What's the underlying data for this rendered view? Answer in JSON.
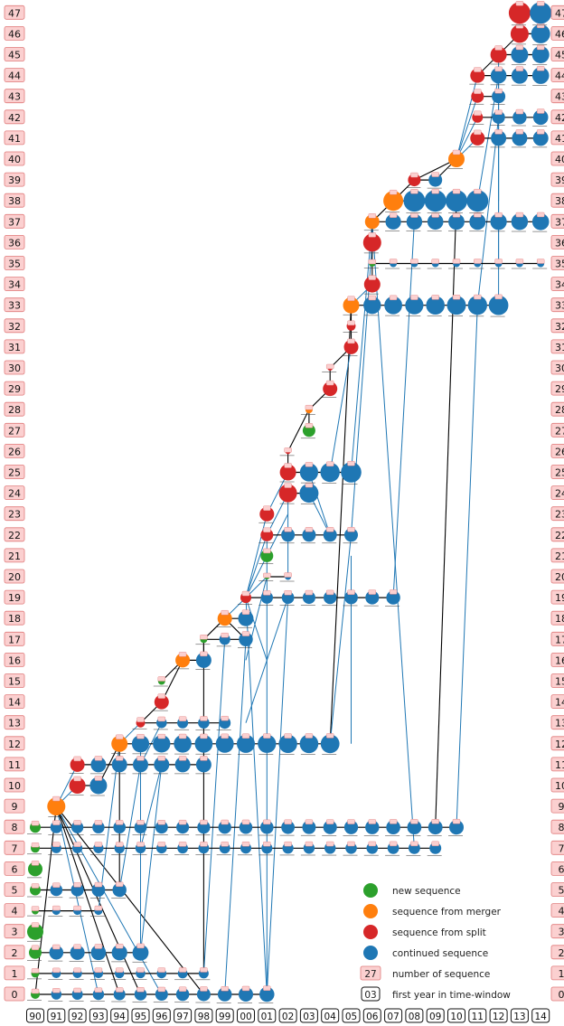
{
  "colors": {
    "new": "#2ca02c",
    "merger": "#ff7f0e",
    "split": "#d62728",
    "continued": "#1f77b4",
    "label_fill": "#fbd0d0",
    "label_stroke": "#e07a7a",
    "edge_blue": "#1f77b4",
    "edge_black": "#000000"
  },
  "rows": [
    "0",
    "1",
    "2",
    "3",
    "4",
    "5",
    "6",
    "7",
    "8",
    "9",
    "10",
    "11",
    "12",
    "13",
    "14",
    "15",
    "16",
    "17",
    "18",
    "19",
    "20",
    "21",
    "22",
    "23",
    "24",
    "25",
    "26",
    "27",
    "28",
    "29",
    "30",
    "31",
    "32",
    "33",
    "34",
    "35",
    "36",
    "37",
    "38",
    "39",
    "40",
    "41",
    "42",
    "43",
    "44",
    "45",
    "46",
    "47"
  ],
  "years": [
    "90",
    "91",
    "92",
    "93",
    "94",
    "95",
    "96",
    "97",
    "98",
    "99",
    "00",
    "01",
    "02",
    "03",
    "04",
    "05",
    "06",
    "07",
    "08",
    "09",
    "10",
    "11",
    "12",
    "13",
    "14"
  ],
  "legend": [
    {
      "type": "new",
      "label": "new sequence"
    },
    {
      "type": "merger",
      "label": "sequence from merger"
    },
    {
      "type": "split",
      "label": "sequence from split"
    },
    {
      "type": "continued",
      "label": "continued sequence"
    },
    {
      "type": "number",
      "sample": "27",
      "label": "number of sequence"
    },
    {
      "type": "year",
      "sample": "03",
      "label": "first year in time-window"
    }
  ],
  "sequences": [
    {
      "row": 0,
      "start": 0,
      "end": 11,
      "kind": "new",
      "size": 5,
      "grow": 0.55
    },
    {
      "row": 1,
      "start": 0,
      "end": 8,
      "kind": "new",
      "size": 4.5,
      "grow": 0.1
    },
    {
      "row": 2,
      "start": 0,
      "end": 5,
      "kind": "new",
      "size": 7,
      "grow": 0.2
    },
    {
      "row": 3,
      "start": 0,
      "end": 0,
      "kind": "new",
      "size": 9,
      "grow": 0
    },
    {
      "row": 4,
      "start": 0,
      "end": 3,
      "kind": "new",
      "size": 4,
      "grow": 0
    },
    {
      "row": 5,
      "start": 0,
      "end": 4,
      "kind": "new",
      "size": 6,
      "grow": 0.2
    },
    {
      "row": 6,
      "start": 0,
      "end": 0,
      "kind": "new",
      "size": 8,
      "grow": 0
    },
    {
      "row": 7,
      "start": 0,
      "end": 19,
      "kind": "new",
      "size": 5,
      "grow": 0.2
    },
    {
      "row": 8,
      "start": 0,
      "end": 20,
      "kind": "new",
      "size": 6,
      "grow": 0.25
    },
    {
      "row": 9,
      "start": 1,
      "end": 1,
      "kind": "merger",
      "size": 10,
      "grow": 0
    },
    {
      "row": 10,
      "start": 2,
      "end": 3,
      "kind": "split",
      "size": 9,
      "grow": 0
    },
    {
      "row": 11,
      "start": 2,
      "end": 8,
      "kind": "split",
      "size": 8,
      "grow": 0
    },
    {
      "row": 12,
      "start": 4,
      "end": 14,
      "kind": "merger",
      "size": 9,
      "grow": 0.1
    },
    {
      "row": 13,
      "start": 5,
      "end": 9,
      "kind": "split",
      "size": 5,
      "grow": 0.2
    },
    {
      "row": 14,
      "start": 6,
      "end": 6,
      "kind": "split",
      "size": 8,
      "grow": 0
    },
    {
      "row": 15,
      "start": 6,
      "end": 6,
      "kind": "new",
      "size": 4,
      "grow": 0
    },
    {
      "row": 16,
      "start": 7,
      "end": 8,
      "kind": "merger",
      "size": 8,
      "grow": 0
    },
    {
      "row": 17,
      "start": 8,
      "end": 10,
      "kind": "new",
      "size": 4,
      "grow": 0.8
    },
    {
      "row": 18,
      "start": 9,
      "end": 10,
      "kind": "merger",
      "size": 8,
      "grow": 0
    },
    {
      "row": 19,
      "start": 10,
      "end": 17,
      "kind": "split",
      "size": 6,
      "grow": 0.2
    },
    {
      "row": 20,
      "start": 11,
      "end": 12,
      "kind": "new",
      "size": 3,
      "grow": 0
    },
    {
      "row": 21,
      "start": 11,
      "end": 11,
      "kind": "new",
      "size": 7,
      "grow": 0
    },
    {
      "row": 22,
      "start": 11,
      "end": 15,
      "kind": "split",
      "size": 7,
      "grow": 0
    },
    {
      "row": 23,
      "start": 11,
      "end": 11,
      "kind": "split",
      "size": 8,
      "grow": 0
    },
    {
      "row": 24,
      "start": 12,
      "end": 13,
      "kind": "split",
      "size": 10,
      "grow": 0
    },
    {
      "row": 25,
      "start": 12,
      "end": 15,
      "kind": "split",
      "size": 9,
      "grow": 0.2
    },
    {
      "row": 26,
      "start": 12,
      "end": 12,
      "kind": "split",
      "size": 3,
      "grow": 0
    },
    {
      "row": 27,
      "start": 13,
      "end": 13,
      "kind": "new",
      "size": 7,
      "grow": 0
    },
    {
      "row": 28,
      "start": 13,
      "end": 13,
      "kind": "merger",
      "size": 4,
      "grow": 0
    },
    {
      "row": 29,
      "start": 14,
      "end": 14,
      "kind": "split",
      "size": 8,
      "grow": 0
    },
    {
      "row": 30,
      "start": 14,
      "end": 14,
      "kind": "split",
      "size": 3,
      "grow": 0
    },
    {
      "row": 31,
      "start": 15,
      "end": 15,
      "kind": "split",
      "size": 8,
      "grow": 0
    },
    {
      "row": 32,
      "start": 15,
      "end": 15,
      "kind": "split",
      "size": 5,
      "grow": 0
    },
    {
      "row": 33,
      "start": 15,
      "end": 22,
      "kind": "merger",
      "size": 9,
      "grow": 0.15
    },
    {
      "row": 34,
      "start": 16,
      "end": 16,
      "kind": "split",
      "size": 9,
      "grow": 0
    },
    {
      "row": 35,
      "start": 16,
      "end": 24,
      "kind": "new",
      "size": 3.5,
      "grow": 0
    },
    {
      "row": 36,
      "start": 16,
      "end": 16,
      "kind": "split",
      "size": 10,
      "grow": 0
    },
    {
      "row": 37,
      "start": 16,
      "end": 24,
      "kind": "merger",
      "size": 8,
      "grow": 0.1
    },
    {
      "row": 38,
      "start": 17,
      "end": 21,
      "kind": "merger",
      "size": 11,
      "grow": 0.15
    },
    {
      "row": 39,
      "start": 18,
      "end": 19,
      "kind": "split",
      "size": 7,
      "grow": 0
    },
    {
      "row": 40,
      "start": 20,
      "end": 20,
      "kind": "merger",
      "size": 9,
      "grow": 0
    },
    {
      "row": 41,
      "start": 21,
      "end": 24,
      "kind": "split",
      "size": 8,
      "grow": 0
    },
    {
      "row": 42,
      "start": 21,
      "end": 24,
      "kind": "split",
      "size": 6,
      "grow": 0.3
    },
    {
      "row": 43,
      "start": 21,
      "end": 22,
      "kind": "split",
      "size": 7,
      "grow": 0
    },
    {
      "row": 44,
      "start": 21,
      "end": 24,
      "kind": "split",
      "size": 8,
      "grow": 0.1
    },
    {
      "row": 45,
      "start": 22,
      "end": 24,
      "kind": "split",
      "size": 9,
      "grow": 0
    },
    {
      "row": 46,
      "start": 23,
      "end": 24,
      "kind": "split",
      "size": 10,
      "grow": 0
    },
    {
      "row": 47,
      "start": 23,
      "end": 24,
      "kind": "split",
      "size": 12,
      "grow": 0
    }
  ],
  "edges": [
    {
      "from": [
        0,
        0
      ],
      "to": [
        1,
        9
      ],
      "color": "black"
    },
    {
      "from": [
        5,
        0
      ],
      "to": [
        1,
        9
      ],
      "color": "black"
    },
    {
      "from": [
        8,
        0
      ],
      "to": [
        1,
        9
      ],
      "color": "black"
    },
    {
      "from": [
        4,
        0
      ],
      "to": [
        1,
        9
      ],
      "color": "black"
    },
    {
      "from": [
        6,
        0
      ],
      "to": [
        1,
        9
      ],
      "color": "blue"
    },
    {
      "from": [
        3,
        0
      ],
      "to": [
        1,
        9
      ],
      "color": "blue"
    },
    {
      "from": [
        1,
        9
      ],
      "to": [
        2,
        10
      ],
      "color": "blue"
    },
    {
      "from": [
        1,
        9
      ],
      "to": [
        2,
        11
      ],
      "color": "blue"
    },
    {
      "from": [
        3,
        10
      ],
      "to": [
        4,
        12
      ],
      "color": "black"
    },
    {
      "from": [
        4,
        5
      ],
      "to": [
        4,
        12
      ],
      "color": "black"
    },
    {
      "from": [
        3,
        4
      ],
      "to": [
        4,
        12
      ],
      "color": "blue"
    },
    {
      "from": [
        5,
        2
      ],
      "to": [
        5,
        12
      ],
      "color": "blue"
    },
    {
      "from": [
        4,
        12
      ],
      "to": [
        5,
        13
      ],
      "color": "blue"
    },
    {
      "from": [
        5,
        13
      ],
      "to": [
        6,
        14
      ],
      "color": "black"
    },
    {
      "from": [
        6,
        15
      ],
      "to": [
        7,
        16
      ],
      "color": "black"
    },
    {
      "from": [
        6,
        14
      ],
      "to": [
        7,
        16
      ],
      "color": "black"
    },
    {
      "from": [
        8,
        1
      ],
      "to": [
        8,
        17
      ],
      "color": "black"
    },
    {
      "from": [
        8,
        16
      ],
      "to": [
        8,
        17
      ],
      "color": "black"
    },
    {
      "from": [
        8,
        17
      ],
      "to": [
        9,
        18
      ],
      "color": "black"
    },
    {
      "from": [
        10,
        17
      ],
      "to": [
        9,
        18
      ],
      "color": "black"
    },
    {
      "from": [
        9,
        18
      ],
      "to": [
        10,
        19
      ],
      "color": "blue"
    },
    {
      "from": [
        11,
        0
      ],
      "to": [
        10,
        19
      ],
      "color": "blue"
    },
    {
      "from": [
        10,
        19
      ],
      "to": [
        11,
        20
      ],
      "color": "blue"
    },
    {
      "from": [
        10,
        19
      ],
      "to": [
        11,
        21
      ],
      "color": "blue"
    },
    {
      "from": [
        10,
        19
      ],
      "to": [
        11,
        22
      ],
      "color": "blue"
    },
    {
      "from": [
        10,
        19
      ],
      "to": [
        11,
        23
      ],
      "color": "blue"
    },
    {
      "from": [
        11,
        22
      ],
      "to": [
        12,
        24
      ],
      "color": "blue"
    },
    {
      "from": [
        11,
        23
      ],
      "to": [
        12,
        25
      ],
      "color": "blue"
    },
    {
      "from": [
        12,
        20
      ],
      "to": [
        12,
        24
      ],
      "color": "blue"
    },
    {
      "from": [
        12,
        25
      ],
      "to": [
        12,
        26
      ],
      "color": "black"
    },
    {
      "from": [
        12,
        26
      ],
      "to": [
        13,
        28
      ],
      "color": "black"
    },
    {
      "from": [
        13,
        27
      ],
      "to": [
        13,
        28
      ],
      "color": "black"
    },
    {
      "from": [
        13,
        28
      ],
      "to": [
        14,
        29
      ],
      "color": "black"
    },
    {
      "from": [
        14,
        29
      ],
      "to": [
        14,
        30
      ],
      "color": "black"
    },
    {
      "from": [
        14,
        30
      ],
      "to": [
        15,
        31
      ],
      "color": "black"
    },
    {
      "from": [
        15,
        31
      ],
      "to": [
        15,
        32
      ],
      "color": "black"
    },
    {
      "from": [
        15,
        32
      ],
      "to": [
        15,
        33
      ],
      "color": "black"
    },
    {
      "from": [
        14,
        12
      ],
      "to": [
        15,
        33
      ],
      "color": "black"
    },
    {
      "from": [
        15,
        33
      ],
      "to": [
        16,
        34
      ],
      "color": "blue"
    },
    {
      "from": [
        16,
        34
      ],
      "to": [
        16,
        35
      ],
      "color": "black"
    },
    {
      "from": [
        16,
        35
      ],
      "to": [
        16,
        36
      ],
      "color": "black"
    },
    {
      "from": [
        16,
        36
      ],
      "to": [
        16,
        37
      ],
      "color": "black"
    },
    {
      "from": [
        15,
        25
      ],
      "to": [
        16,
        37
      ],
      "color": "blue"
    },
    {
      "from": [
        15,
        22
      ],
      "to": [
        16,
        36
      ],
      "color": "blue"
    },
    {
      "from": [
        16,
        37
      ],
      "to": [
        17,
        38
      ],
      "color": "black"
    },
    {
      "from": [
        17,
        38
      ],
      "to": [
        18,
        39
      ],
      "color": "black"
    },
    {
      "from": [
        18,
        39
      ],
      "to": [
        20,
        40
      ],
      "color": "black"
    },
    {
      "from": [
        19,
        39
      ],
      "to": [
        20,
        40
      ],
      "color": "black"
    },
    {
      "from": [
        20,
        40
      ],
      "to": [
        21,
        41
      ],
      "color": "blue"
    },
    {
      "from": [
        20,
        40
      ],
      "to": [
        21,
        42
      ],
      "color": "blue"
    },
    {
      "from": [
        20,
        40
      ],
      "to": [
        21,
        43
      ],
      "color": "blue"
    },
    {
      "from": [
        20,
        40
      ],
      "to": [
        21,
        44
      ],
      "color": "blue"
    },
    {
      "from": [
        21,
        44
      ],
      "to": [
        22,
        45
      ],
      "color": "black"
    },
    {
      "from": [
        22,
        45
      ],
      "to": [
        23,
        46
      ],
      "color": "black"
    },
    {
      "from": [
        23,
        46
      ],
      "to": [
        23,
        47
      ],
      "color": "black"
    },
    {
      "from": [
        22,
        33
      ],
      "to": [
        22,
        45
      ],
      "color": "blue"
    },
    {
      "from": [
        21,
        38
      ],
      "to": [
        22,
        44
      ],
      "color": "blue"
    },
    {
      "from": [
        18,
        7
      ],
      "to": [
        16,
        37
      ],
      "color": "blue"
    },
    {
      "from": [
        19,
        8
      ],
      "to": [
        20,
        38
      ],
      "color": "black"
    },
    {
      "from": [
        20,
        8
      ],
      "to": [
        21,
        33
      ],
      "color": "blue"
    },
    {
      "from": [
        17,
        19
      ],
      "to": [
        18,
        37
      ],
      "color": "blue"
    },
    {
      "from": [
        11,
        0
      ],
      "to": [
        12,
        19
      ],
      "color": "blue"
    },
    {
      "from": [
        11,
        0
      ],
      "to": [
        11,
        22
      ],
      "color": "blue"
    },
    {
      "from": [
        9,
        0
      ],
      "to": [
        10,
        17
      ],
      "color": "blue"
    },
    {
      "from": [
        8,
        1
      ],
      "to": [
        9,
        17
      ],
      "color": "blue"
    },
    {
      "from": [
        5,
        2
      ],
      "to": [
        6,
        11
      ],
      "color": "blue"
    },
    {
      "from": [
        5,
        11
      ],
      "to": [
        6,
        13
      ],
      "color": "blue"
    },
    {
      "from": [
        5,
        7
      ],
      "to": [
        6,
        11
      ],
      "color": "blue"
    },
    {
      "from": [
        4,
        5
      ],
      "to": [
        5,
        11
      ],
      "color": "blue"
    },
    {
      "from": [
        10,
        13
      ],
      "to": [
        12,
        19
      ],
      "color": "blue"
    },
    {
      "from": [
        10,
        16
      ],
      "to": [
        11,
        20
      ],
      "color": "blue"
    },
    {
      "from": [
        14,
        12
      ],
      "to": [
        15,
        22
      ],
      "color": "blue"
    },
    {
      "from": [
        13,
        25
      ],
      "to": [
        14,
        22
      ],
      "color": "blue"
    },
    {
      "from": [
        14,
        25
      ],
      "to": [
        15,
        31
      ],
      "color": "blue"
    },
    {
      "from": [
        13,
        24
      ],
      "to": [
        14,
        22
      ],
      "color": "blue"
    },
    {
      "from": [
        12,
        23
      ],
      "to": [
        11,
        21
      ],
      "color": "blue"
    },
    {
      "from": [
        15,
        21
      ],
      "to": [
        15,
        12
      ],
      "color": "blue"
    },
    {
      "from": [
        11,
        16
      ],
      "to": [
        10,
        19
      ],
      "color": "blue"
    },
    {
      "from": [
        21,
        33
      ],
      "to": [
        22,
        42
      ],
      "color": "blue"
    },
    {
      "from": [
        22,
        38
      ],
      "to": [
        22,
        44
      ],
      "color": "blue"
    },
    {
      "from": [
        22,
        35
      ],
      "to": [
        22,
        41
      ],
      "color": "blue"
    }
  ]
}
